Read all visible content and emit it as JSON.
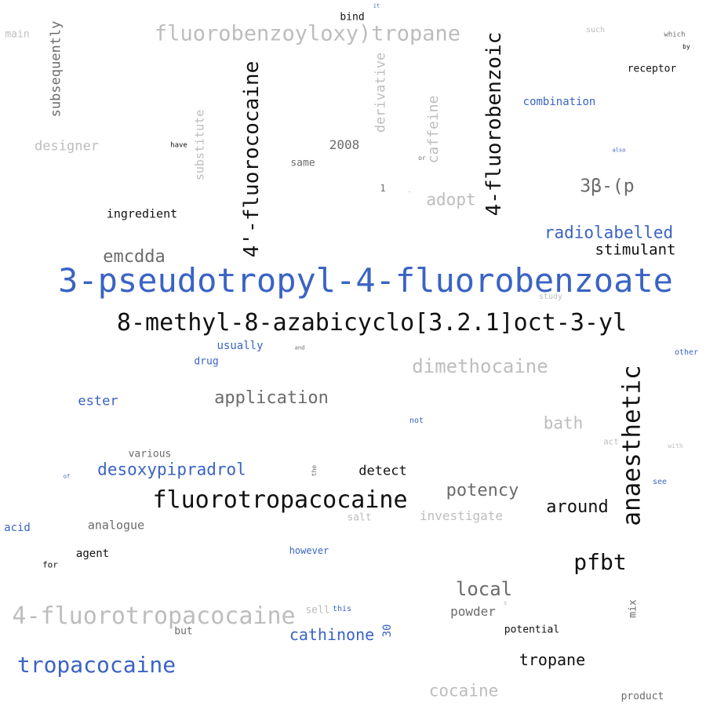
{
  "palette": {
    "blue": "#3a63c4",
    "dark": "#111111",
    "grey": "#6b6b6b",
    "light": "#bdbdbd"
  },
  "words": [
    {
      "text": "3-pseudotropyl-4-fluorobenzoate",
      "color": "blue",
      "vertical": false
    },
    {
      "text": "8-methyl-8-azabicyclo[3.2.1]oct-3-yl",
      "color": "dark",
      "vertical": false
    },
    {
      "text": "fluorotropacocaine",
      "color": "dark",
      "vertical": false
    },
    {
      "text": "4-fluorotropacocaine",
      "color": "light",
      "vertical": false
    },
    {
      "text": "fluorobenzoyloxy)tropane",
      "color": "light",
      "vertical": false
    },
    {
      "text": "4'-fluorococaine",
      "color": "dark",
      "vertical": true
    },
    {
      "text": "4-fluorobenzoic",
      "color": "dark",
      "vertical": true
    },
    {
      "text": "anaesthetic",
      "color": "dark",
      "vertical": true
    },
    {
      "text": "tropacocaine",
      "color": "blue",
      "vertical": false
    },
    {
      "text": "dimethocaine",
      "color": "light",
      "vertical": false
    },
    {
      "text": "pfbt",
      "color": "dark",
      "vertical": false
    },
    {
      "text": "3β-(p",
      "color": "grey",
      "vertical": false
    },
    {
      "text": "radiolabelled",
      "color": "blue",
      "vertical": false
    },
    {
      "text": "stimulant",
      "color": "dark",
      "vertical": false
    },
    {
      "text": "emcdda",
      "color": "grey",
      "vertical": false
    },
    {
      "text": "application",
      "color": "grey",
      "vertical": false
    },
    {
      "text": "desoxypipradrol",
      "color": "blue",
      "vertical": false
    },
    {
      "text": "potency",
      "color": "grey",
      "vertical": false
    },
    {
      "text": "local",
      "color": "grey",
      "vertical": false
    },
    {
      "text": "around",
      "color": "dark",
      "vertical": false
    },
    {
      "text": "bath",
      "color": "light",
      "vertical": false
    },
    {
      "text": "cathinone",
      "color": "blue",
      "vertical": false
    },
    {
      "text": "cocaine",
      "color": "light",
      "vertical": false
    },
    {
      "text": "tropane",
      "color": "dark",
      "vertical": false
    },
    {
      "text": "adopt",
      "color": "light",
      "vertical": false
    },
    {
      "text": "caffeine",
      "color": "light",
      "vertical": true
    },
    {
      "text": "derivative",
      "color": "light",
      "vertical": true
    },
    {
      "text": "subsequently",
      "color": "grey",
      "vertical": true
    },
    {
      "text": "substitute",
      "color": "light",
      "vertical": true
    },
    {
      "text": "designer",
      "color": "light",
      "vertical": false
    },
    {
      "text": "ingredient",
      "color": "dark",
      "vertical": false
    },
    {
      "text": "2008",
      "color": "grey",
      "vertical": false
    },
    {
      "text": "same",
      "color": "grey",
      "vertical": false
    },
    {
      "text": "main",
      "color": "light",
      "vertical": false
    },
    {
      "text": "bind",
      "color": "dark",
      "vertical": false
    },
    {
      "text": "combination",
      "color": "blue",
      "vertical": false
    },
    {
      "text": "receptor",
      "color": "dark",
      "vertical": false
    },
    {
      "text": "ester",
      "color": "blue",
      "vertical": false
    },
    {
      "text": "usually",
      "color": "blue",
      "vertical": false
    },
    {
      "text": "drug",
      "color": "blue",
      "vertical": false
    },
    {
      "text": "various",
      "color": "grey",
      "vertical": false
    },
    {
      "text": "detect",
      "color": "dark",
      "vertical": false
    },
    {
      "text": "salt",
      "color": "light",
      "vertical": false
    },
    {
      "text": "investigate",
      "color": "light",
      "vertical": false
    },
    {
      "text": "analogue",
      "color": "grey",
      "vertical": false
    },
    {
      "text": "acid",
      "color": "blue",
      "vertical": false
    },
    {
      "text": "agent",
      "color": "dark",
      "vertical": false
    },
    {
      "text": "for",
      "color": "dark",
      "vertical": false
    },
    {
      "text": "however",
      "color": "blue",
      "vertical": false
    },
    {
      "text": "powder",
      "color": "grey",
      "vertical": false
    },
    {
      "text": "sell",
      "color": "light",
      "vertical": false
    },
    {
      "text": "this",
      "color": "blue",
      "vertical": false
    },
    {
      "text": "30",
      "color": "blue",
      "vertical": true
    },
    {
      "text": "but",
      "color": "grey",
      "vertical": false
    },
    {
      "text": "potential",
      "color": "dark",
      "vertical": false
    },
    {
      "text": "mix",
      "color": "grey",
      "vertical": true
    },
    {
      "text": "product",
      "color": "grey",
      "vertical": false
    },
    {
      "text": "have",
      "color": "dark",
      "vertical": false
    },
    {
      "text": "1",
      "color": "grey",
      "vertical": false
    },
    {
      "text": "or",
      "color": "grey",
      "vertical": false
    },
    {
      "text": "such",
      "color": "light",
      "vertical": false
    },
    {
      "text": "which",
      "color": "grey",
      "vertical": false
    },
    {
      "text": "by",
      "color": "dark",
      "vertical": false
    },
    {
      "text": "also",
      "color": "blue",
      "vertical": false
    },
    {
      "text": "it",
      "color": "blue",
      "vertical": false
    },
    {
      "text": "study",
      "color": "light",
      "vertical": false
    },
    {
      "text": "and",
      "color": "grey",
      "vertical": false
    },
    {
      "text": "other",
      "color": "blue",
      "vertical": false
    },
    {
      "text": "not",
      "color": "blue",
      "vertical": false
    },
    {
      "text": "act",
      "color": "light",
      "vertical": false
    },
    {
      "text": "with",
      "color": "light",
      "vertical": false
    },
    {
      "text": "see",
      "color": "blue",
      "vertical": false
    },
    {
      "text": "of",
      "color": "blue",
      "vertical": false
    },
    {
      "text": "the",
      "color": "grey",
      "vertical": true
    },
    {
      "text": "s",
      "color": "light",
      "vertical": false
    },
    {
      "text": "-",
      "color": "grey",
      "vertical": false
    }
  ]
}
